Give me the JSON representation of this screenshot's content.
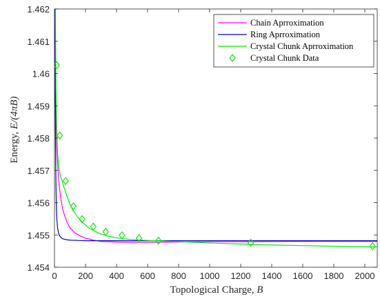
{
  "chart_data": {
    "type": "line",
    "title": "",
    "xlabel": "Topological Charge, B",
    "ylabel": "Energy, E/(4πB)",
    "xlim": [
      0,
      2080
    ],
    "ylim": [
      1.454,
      1.462
    ],
    "xticks": [
      0,
      200,
      400,
      600,
      800,
      1000,
      1200,
      1400,
      1600,
      1800,
      2000
    ],
    "yticks": [
      1.454,
      1.455,
      1.456,
      1.457,
      1.458,
      1.459,
      1.46,
      1.461,
      1.462
    ],
    "xtick_labels": [
      "0",
      "200",
      "400",
      "600",
      "800",
      "1000",
      "1200",
      "1400",
      "1600",
      "1800",
      "2000"
    ],
    "ytick_labels": [
      "1.454",
      "1.455",
      "1.456",
      "1.457",
      "1.458",
      "1.459",
      "1.46",
      "1.461",
      "1.462"
    ],
    "grid": false,
    "legend_position": "top-right",
    "series": [
      {
        "name": "Chain Aprroximation",
        "color": "#ff00ff",
        "kind": "line",
        "x": [
          2,
          4,
          6,
          8,
          10,
          15,
          20,
          30,
          40,
          50,
          60,
          80,
          100,
          130,
          160,
          200,
          250,
          300,
          400,
          500,
          600,
          800,
          1000,
          1200,
          1500,
          1800,
          2080
        ],
        "y": [
          1.46198,
          1.46102,
          1.45999,
          1.45918,
          1.45857,
          1.45769,
          1.4572,
          1.45655,
          1.45615,
          1.45588,
          1.45568,
          1.4554,
          1.45522,
          1.45507,
          1.45498,
          1.4549,
          1.45484,
          1.4548,
          1.45478,
          1.45477,
          1.45477,
          1.45478,
          1.45479,
          1.45479,
          1.4548,
          1.4548,
          1.4548
        ]
      },
      {
        "name": "Ring Aprroximation",
        "color": "#0000cc",
        "kind": "line",
        "x": [
          2,
          3,
          4,
          5,
          6,
          8,
          10,
          12,
          15,
          20,
          25,
          30,
          40,
          50,
          60,
          80,
          100,
          150,
          200,
          300,
          500,
          800,
          1200,
          1600,
          2080
        ],
        "y": [
          1.462,
          1.4612,
          1.4602,
          1.4592,
          1.4584,
          1.4572,
          1.4564,
          1.4559,
          1.4555,
          1.45522,
          1.45508,
          1.455,
          1.45493,
          1.45489,
          1.45487,
          1.45485,
          1.45484,
          1.45483,
          1.45482,
          1.45482,
          1.45482,
          1.45482,
          1.45482,
          1.45482,
          1.45482
        ]
      },
      {
        "name": "Crystal Chunk Aprroximation",
        "color": "#00ee00",
        "kind": "line",
        "x": [
          4,
          6,
          8,
          10,
          15,
          20,
          30,
          40,
          50,
          60,
          80,
          100,
          120,
          150,
          180,
          220,
          260,
          300,
          350,
          400,
          450,
          500,
          600,
          700,
          800,
          1000,
          1200,
          1400,
          1600,
          1800,
          2080
        ],
        "y": [
          1.4645,
          1.462,
          1.4605,
          1.4595,
          1.4582,
          1.4575,
          1.45705,
          1.4568,
          1.45665,
          1.4565,
          1.4562,
          1.45595,
          1.45575,
          1.45555,
          1.4554,
          1.45522,
          1.45511,
          1.45503,
          1.45496,
          1.45491,
          1.45488,
          1.45486,
          1.45483,
          1.45481,
          1.45479,
          1.45475,
          1.45472,
          1.45469,
          1.45467,
          1.45465,
          1.45463
        ]
      },
      {
        "name": "Crystal Chunk Data",
        "color": "#00ee00",
        "kind": "marker",
        "marker": "diamond",
        "x": [
          14,
          34,
          72,
          122,
          178,
          250,
          330,
          435,
          545,
          670,
          1265,
          2050
        ],
        "y": [
          1.46026,
          1.45808,
          1.45667,
          1.45589,
          1.45549,
          1.45526,
          1.4551,
          1.45499,
          1.4549,
          1.45482,
          1.45476,
          1.45465
        ]
      }
    ]
  }
}
